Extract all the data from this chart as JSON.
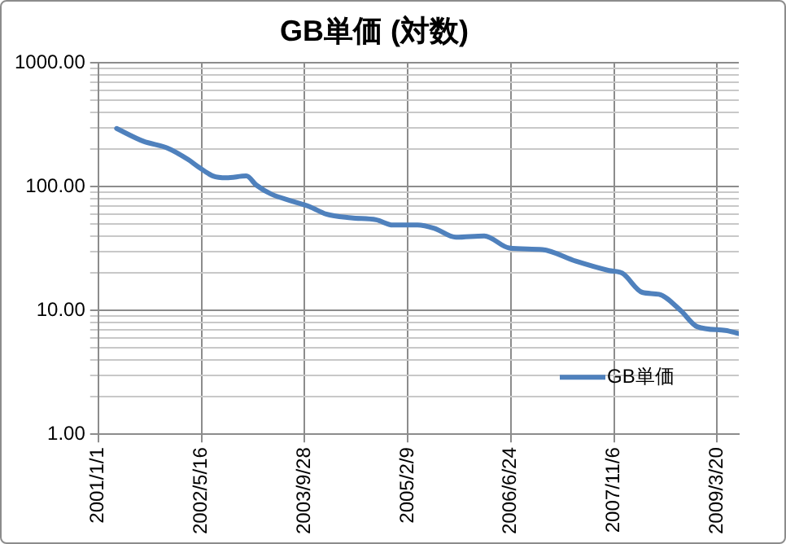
{
  "chart_data": {
    "type": "line",
    "title": "GB単価 (対数)",
    "x": [
      "2001-03-31",
      "2001-08-07",
      "2001-12-06",
      "2002-03-12",
      "2002-04-30",
      "2002-07-11",
      "2002-09-14",
      "2002-12-20",
      "2003-02-06",
      "2003-04-20",
      "2003-08-03",
      "2003-10-22",
      "2004-01-11",
      "2004-05-11",
      "2004-09-09",
      "2004-11-29",
      "2005-03-29",
      "2005-06-18",
      "2005-10-01",
      "2006-02-15",
      "2006-06-16",
      "2006-11-24",
      "2007-05-05",
      "2007-10-13",
      "2007-12-16",
      "2008-03-22",
      "2008-06-11",
      "2008-09-24",
      "2008-12-13",
      "2009-04-29",
      "2009-07-03"
    ],
    "series": [
      {
        "name": "GB単価",
        "color": "#4f81bd",
        "values": [
          295,
          233,
          204,
          166,
          145,
          122,
          118,
          122,
          103,
          87,
          76,
          69,
          60,
          56,
          54,
          49,
          49,
          46,
          39,
          40,
          32,
          31,
          25,
          21,
          20,
          14,
          13.5,
          10,
          7.4,
          6.9,
          6.5
        ]
      }
    ],
    "xlim": [
      "2001-01-01",
      "2009-07-03"
    ],
    "xticks": [
      {
        "value": "2001-01-01",
        "label": "2001/1/1"
      },
      {
        "value": "2002-05-16",
        "label": "2002/5/16"
      },
      {
        "value": "2003-09-28",
        "label": "2003/9/28"
      },
      {
        "value": "2005-02-09",
        "label": "2005/2/9"
      },
      {
        "value": "2006-06-24",
        "label": "2006/6/24"
      },
      {
        "value": "2007-11-06",
        "label": "2007/11/6"
      },
      {
        "value": "2009-03-20",
        "label": "2009/3/20"
      }
    ],
    "ylim": [
      1,
      1000
    ],
    "yticks": [
      {
        "value": 1,
        "label": "1.00"
      },
      {
        "value": 2,
        "label": null
      },
      {
        "value": 3,
        "label": null
      },
      {
        "value": 4,
        "label": null
      },
      {
        "value": 5,
        "label": null
      },
      {
        "value": 6,
        "label": null
      },
      {
        "value": 7,
        "label": null
      },
      {
        "value": 8,
        "label": null
      },
      {
        "value": 9,
        "label": null
      },
      {
        "value": 10,
        "label": "10.00"
      },
      {
        "value": 20,
        "label": null
      },
      {
        "value": 30,
        "label": null
      },
      {
        "value": 40,
        "label": null
      },
      {
        "value": 50,
        "label": null
      },
      {
        "value": 60,
        "label": null
      },
      {
        "value": 70,
        "label": null
      },
      {
        "value": 80,
        "label": null
      },
      {
        "value": 90,
        "label": null
      },
      {
        "value": 100,
        "label": "100.00"
      },
      {
        "value": 200,
        "label": null
      },
      {
        "value": 300,
        "label": null
      },
      {
        "value": 400,
        "label": null
      },
      {
        "value": 500,
        "label": null
      },
      {
        "value": 600,
        "label": null
      },
      {
        "value": 700,
        "label": null
      },
      {
        "value": 800,
        "label": null
      },
      {
        "value": 900,
        "label": null
      },
      {
        "value": 1000,
        "label": "1000.00"
      }
    ],
    "log": "y",
    "grid": true,
    "legend": "bottom right",
    "marker": "none",
    "line_style": "solid"
  }
}
